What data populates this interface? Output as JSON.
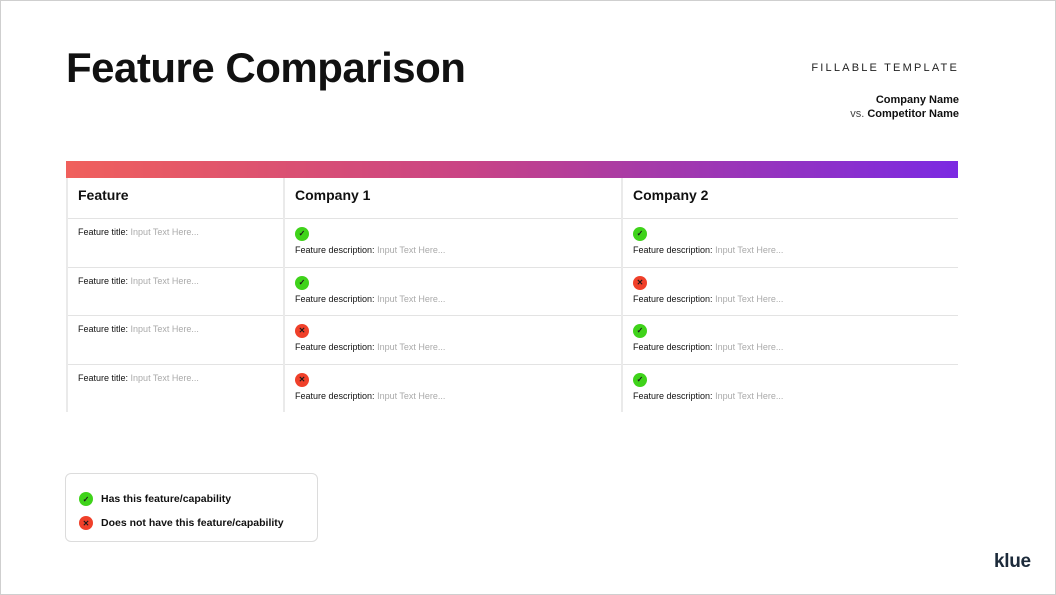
{
  "header": {
    "title": "Feature Comparison",
    "tag": "FILLABLE TEMPLATE",
    "company": "Company Name",
    "vs": "vs.",
    "competitor": "Competitor Name"
  },
  "colors": {
    "yes": "#3fd31a",
    "no": "#f0402a",
    "gradient_start": "#f0605c",
    "gradient_end": "#7b2ae2"
  },
  "table": {
    "columns": [
      "Feature",
      "Company 1",
      "Company 2"
    ],
    "title_label": "Feature title:",
    "desc_label": "Feature description:",
    "placeholder": "Input Text Here...",
    "rows": [
      {
        "c1": "yes",
        "c2": "yes"
      },
      {
        "c1": "yes",
        "c2": "no"
      },
      {
        "c1": "no",
        "c2": "yes"
      },
      {
        "c1": "no",
        "c2": "yes"
      }
    ]
  },
  "legend": {
    "yes": "Has this feature/capability",
    "no": "Does not have this feature/capability"
  },
  "logo": "klue"
}
